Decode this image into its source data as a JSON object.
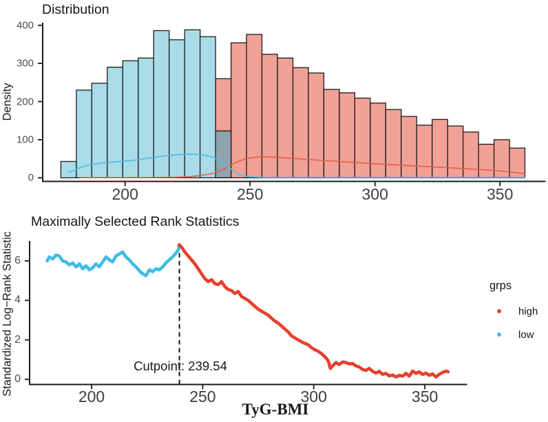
{
  "figure": {
    "background": "#FFFFFF"
  },
  "colors": {
    "axis": "#1A1A1A",
    "x_tick_label": "#3D3D3D",
    "y_tick_label": "#4D4D4D",
    "text": "#171717",
    "hist_low_fill": "#A9DBE9",
    "hist_high_fill": "#F2A197",
    "hist_overlap_fill": "#90A2AE",
    "hist_stroke": "#141414",
    "density_low": "#4FC0E2",
    "density_high": "#E8604A",
    "series_low": "#41BCE4",
    "series_high": "#E6402D"
  },
  "chart_data": [
    {
      "type": "bar",
      "subtype": "histogram-overlaid-groups",
      "title": "Distribution",
      "xlabel": "",
      "ylabel": "Density",
      "xticks": [
        200,
        250,
        300,
        350
      ],
      "yticks": [
        0,
        100,
        200,
        300,
        400
      ],
      "xlim": [
        167,
        368
      ],
      "ylim": [
        0,
        400
      ],
      "grid": false,
      "bin_start": 174.3,
      "bin_width": 6.19,
      "low_counts": [
        43,
        230,
        248,
        290,
        307,
        314,
        386,
        362,
        388,
        370
      ],
      "overlap_bin": {
        "index": 10,
        "low_count": 123,
        "high_count": 260
      },
      "high_counts": [
        354,
        376,
        324,
        314,
        289,
        275,
        232,
        223,
        209,
        196,
        179,
        161,
        138,
        153,
        136,
        120,
        88,
        100,
        78
      ],
      "density_low": [
        [
          177.5,
          15
        ],
        [
          180,
          21
        ],
        [
          183,
          29
        ],
        [
          186,
          34
        ],
        [
          190,
          38
        ],
        [
          194,
          41
        ],
        [
          198,
          43
        ],
        [
          202,
          45
        ],
        [
          206,
          48
        ],
        [
          210,
          52
        ],
        [
          214,
          56
        ],
        [
          218,
          59
        ],
        [
          222,
          61
        ],
        [
          226,
          62
        ],
        [
          229,
          61
        ],
        [
          232,
          59
        ],
        [
          235,
          54
        ],
        [
          237,
          48
        ],
        [
          239,
          40
        ],
        [
          241,
          30
        ],
        [
          243,
          20
        ],
        [
          245,
          11
        ],
        [
          247,
          6
        ],
        [
          249,
          3
        ],
        [
          252,
          2
        ],
        [
          256,
          1.2
        ],
        [
          270,
          1
        ],
        [
          300,
          1
        ],
        [
          330,
          1
        ],
        [
          360,
          1
        ]
      ],
      "density_high": [
        [
          182,
          0.5
        ],
        [
          200,
          0.5
        ],
        [
          212,
          0.8
        ],
        [
          220,
          1.5
        ],
        [
          226,
          3
        ],
        [
          230,
          6
        ],
        [
          234,
          10
        ],
        [
          237,
          16
        ],
        [
          240,
          25
        ],
        [
          243,
          36
        ],
        [
          246,
          45
        ],
        [
          249,
          51
        ],
        [
          252,
          54
        ],
        [
          255,
          55
        ],
        [
          258,
          54.5
        ],
        [
          262,
          53
        ],
        [
          267,
          51
        ],
        [
          272,
          48.5
        ],
        [
          278,
          46
        ],
        [
          284,
          43.5
        ],
        [
          290,
          41
        ],
        [
          297,
          38
        ],
        [
          304,
          35.5
        ],
        [
          311,
          33
        ],
        [
          318,
          30.5
        ],
        [
          325,
          28
        ],
        [
          332,
          25.5
        ],
        [
          339,
          23
        ],
        [
          346,
          20
        ],
        [
          352,
          17
        ],
        [
          356,
          14
        ],
        [
          359,
          11.5
        ],
        [
          360,
          10
        ]
      ]
    },
    {
      "type": "line",
      "title": "Maximally Selected Rank Statistics",
      "xlabel": "TyG-BMI",
      "ylabel": "Standardized Log−Rank Statistic",
      "xticks": [
        200,
        250,
        300,
        350
      ],
      "yticks": [
        0,
        2,
        4,
        6
      ],
      "xlim": [
        172,
        372
      ],
      "ylim": [
        0,
        7.2
      ],
      "grid": false,
      "cutpoint": 239.54,
      "cutpoint_label": "Cutpoint: 239.54",
      "legend": {
        "title": "grps",
        "position": "right",
        "items": [
          {
            "label": "high",
            "color": "#E6402D"
          },
          {
            "label": "low",
            "color": "#41BCE4"
          }
        ]
      },
      "series": [
        {
          "name": "low",
          "points": [
            [
              180,
              6.0
            ],
            [
              181,
              6.2
            ],
            [
              182.5,
              6.1
            ],
            [
              184,
              6.3
            ],
            [
              185.5,
              6.25
            ],
            [
              187,
              6.0
            ],
            [
              188.5,
              5.95
            ],
            [
              190,
              5.8
            ],
            [
              191.5,
              5.9
            ],
            [
              193,
              5.7
            ],
            [
              194.5,
              5.85
            ],
            [
              196,
              5.6
            ],
            [
              197.5,
              5.75
            ],
            [
              199,
              5.55
            ],
            [
              200.5,
              5.65
            ],
            [
              202,
              5.85
            ],
            [
              203.5,
              5.7
            ],
            [
              205,
              5.95
            ],
            [
              206.5,
              6.2
            ],
            [
              208,
              6.05
            ],
            [
              209.5,
              5.95
            ],
            [
              211,
              6.25
            ],
            [
              212.5,
              6.35
            ],
            [
              214,
              6.45
            ],
            [
              215.5,
              6.2
            ],
            [
              217,
              6.05
            ],
            [
              218.5,
              5.85
            ],
            [
              220,
              5.7
            ],
            [
              221.5,
              5.5
            ],
            [
              223,
              5.35
            ],
            [
              224.5,
              5.25
            ],
            [
              226,
              5.55
            ],
            [
              227.5,
              5.45
            ],
            [
              229,
              5.6
            ],
            [
              230.5,
              5.55
            ],
            [
              232,
              5.7
            ],
            [
              233.5,
              5.9
            ],
            [
              235,
              6.05
            ],
            [
              236.5,
              6.2
            ],
            [
              238,
              6.4
            ],
            [
              239,
              6.55
            ],
            [
              239.54,
              6.8
            ]
          ]
        },
        {
          "name": "high",
          "points": [
            [
              239.54,
              6.8
            ],
            [
              240.5,
              6.7
            ],
            [
              242,
              6.45
            ],
            [
              243.5,
              6.25
            ],
            [
              245,
              6.05
            ],
            [
              246.5,
              5.85
            ],
            [
              248,
              5.6
            ],
            [
              249.5,
              5.35
            ],
            [
              251,
              5.1
            ],
            [
              252.5,
              4.95
            ],
            [
              254,
              5.05
            ],
            [
              255.5,
              4.85
            ],
            [
              257,
              4.8
            ],
            [
              258.5,
              4.95
            ],
            [
              260,
              4.7
            ],
            [
              261.5,
              4.55
            ],
            [
              263,
              4.5
            ],
            [
              264.5,
              4.35
            ],
            [
              266,
              4.45
            ],
            [
              267.5,
              4.2
            ],
            [
              269,
              4.1
            ],
            [
              270.5,
              4.0
            ],
            [
              272,
              3.85
            ],
            [
              273.5,
              3.7
            ],
            [
              275,
              3.55
            ],
            [
              276.5,
              3.45
            ],
            [
              278,
              3.35
            ],
            [
              279.5,
              3.25
            ],
            [
              281,
              3.1
            ],
            [
              282.5,
              2.95
            ],
            [
              284,
              2.85
            ],
            [
              285.5,
              2.7
            ],
            [
              287,
              2.55
            ],
            [
              288.5,
              2.4
            ],
            [
              290,
              2.2
            ],
            [
              291.5,
              2.1
            ],
            [
              293,
              2.0
            ],
            [
              294.5,
              1.9
            ],
            [
              296,
              1.82
            ],
            [
              297.5,
              1.75
            ],
            [
              299,
              1.6
            ],
            [
              300.5,
              1.5
            ],
            [
              302,
              1.42
            ],
            [
              303.5,
              1.3
            ],
            [
              305,
              1.15
            ],
            [
              306.5,
              0.95
            ],
            [
              307.5,
              0.55
            ],
            [
              308.5,
              0.68
            ],
            [
              310,
              0.85
            ],
            [
              311.5,
              0.75
            ],
            [
              313,
              0.88
            ],
            [
              314.5,
              0.85
            ],
            [
              316,
              0.78
            ],
            [
              317.5,
              0.8
            ],
            [
              319,
              0.68
            ],
            [
              320.5,
              0.62
            ],
            [
              322,
              0.5
            ],
            [
              323.5,
              0.45
            ],
            [
              325,
              0.55
            ],
            [
              326.5,
              0.4
            ],
            [
              328,
              0.32
            ],
            [
              329.5,
              0.4
            ],
            [
              331,
              0.25
            ],
            [
              332.5,
              0.3
            ],
            [
              334,
              0.17
            ],
            [
              335.5,
              0.22
            ],
            [
              337,
              0.12
            ],
            [
              338.5,
              0.2
            ],
            [
              340,
              0.16
            ],
            [
              341.5,
              0.3
            ],
            [
              343,
              0.16
            ],
            [
              344.5,
              0.42
            ],
            [
              346,
              0.3
            ],
            [
              347.5,
              0.38
            ],
            [
              349,
              0.24
            ],
            [
              350.5,
              0.32
            ],
            [
              352,
              0.2
            ],
            [
              353.5,
              0.28
            ],
            [
              355,
              0.12
            ],
            [
              356.5,
              0.25
            ],
            [
              358,
              0.35
            ],
            [
              359.5,
              0.42
            ],
            [
              360.5,
              0.38
            ]
          ]
        }
      ]
    }
  ]
}
